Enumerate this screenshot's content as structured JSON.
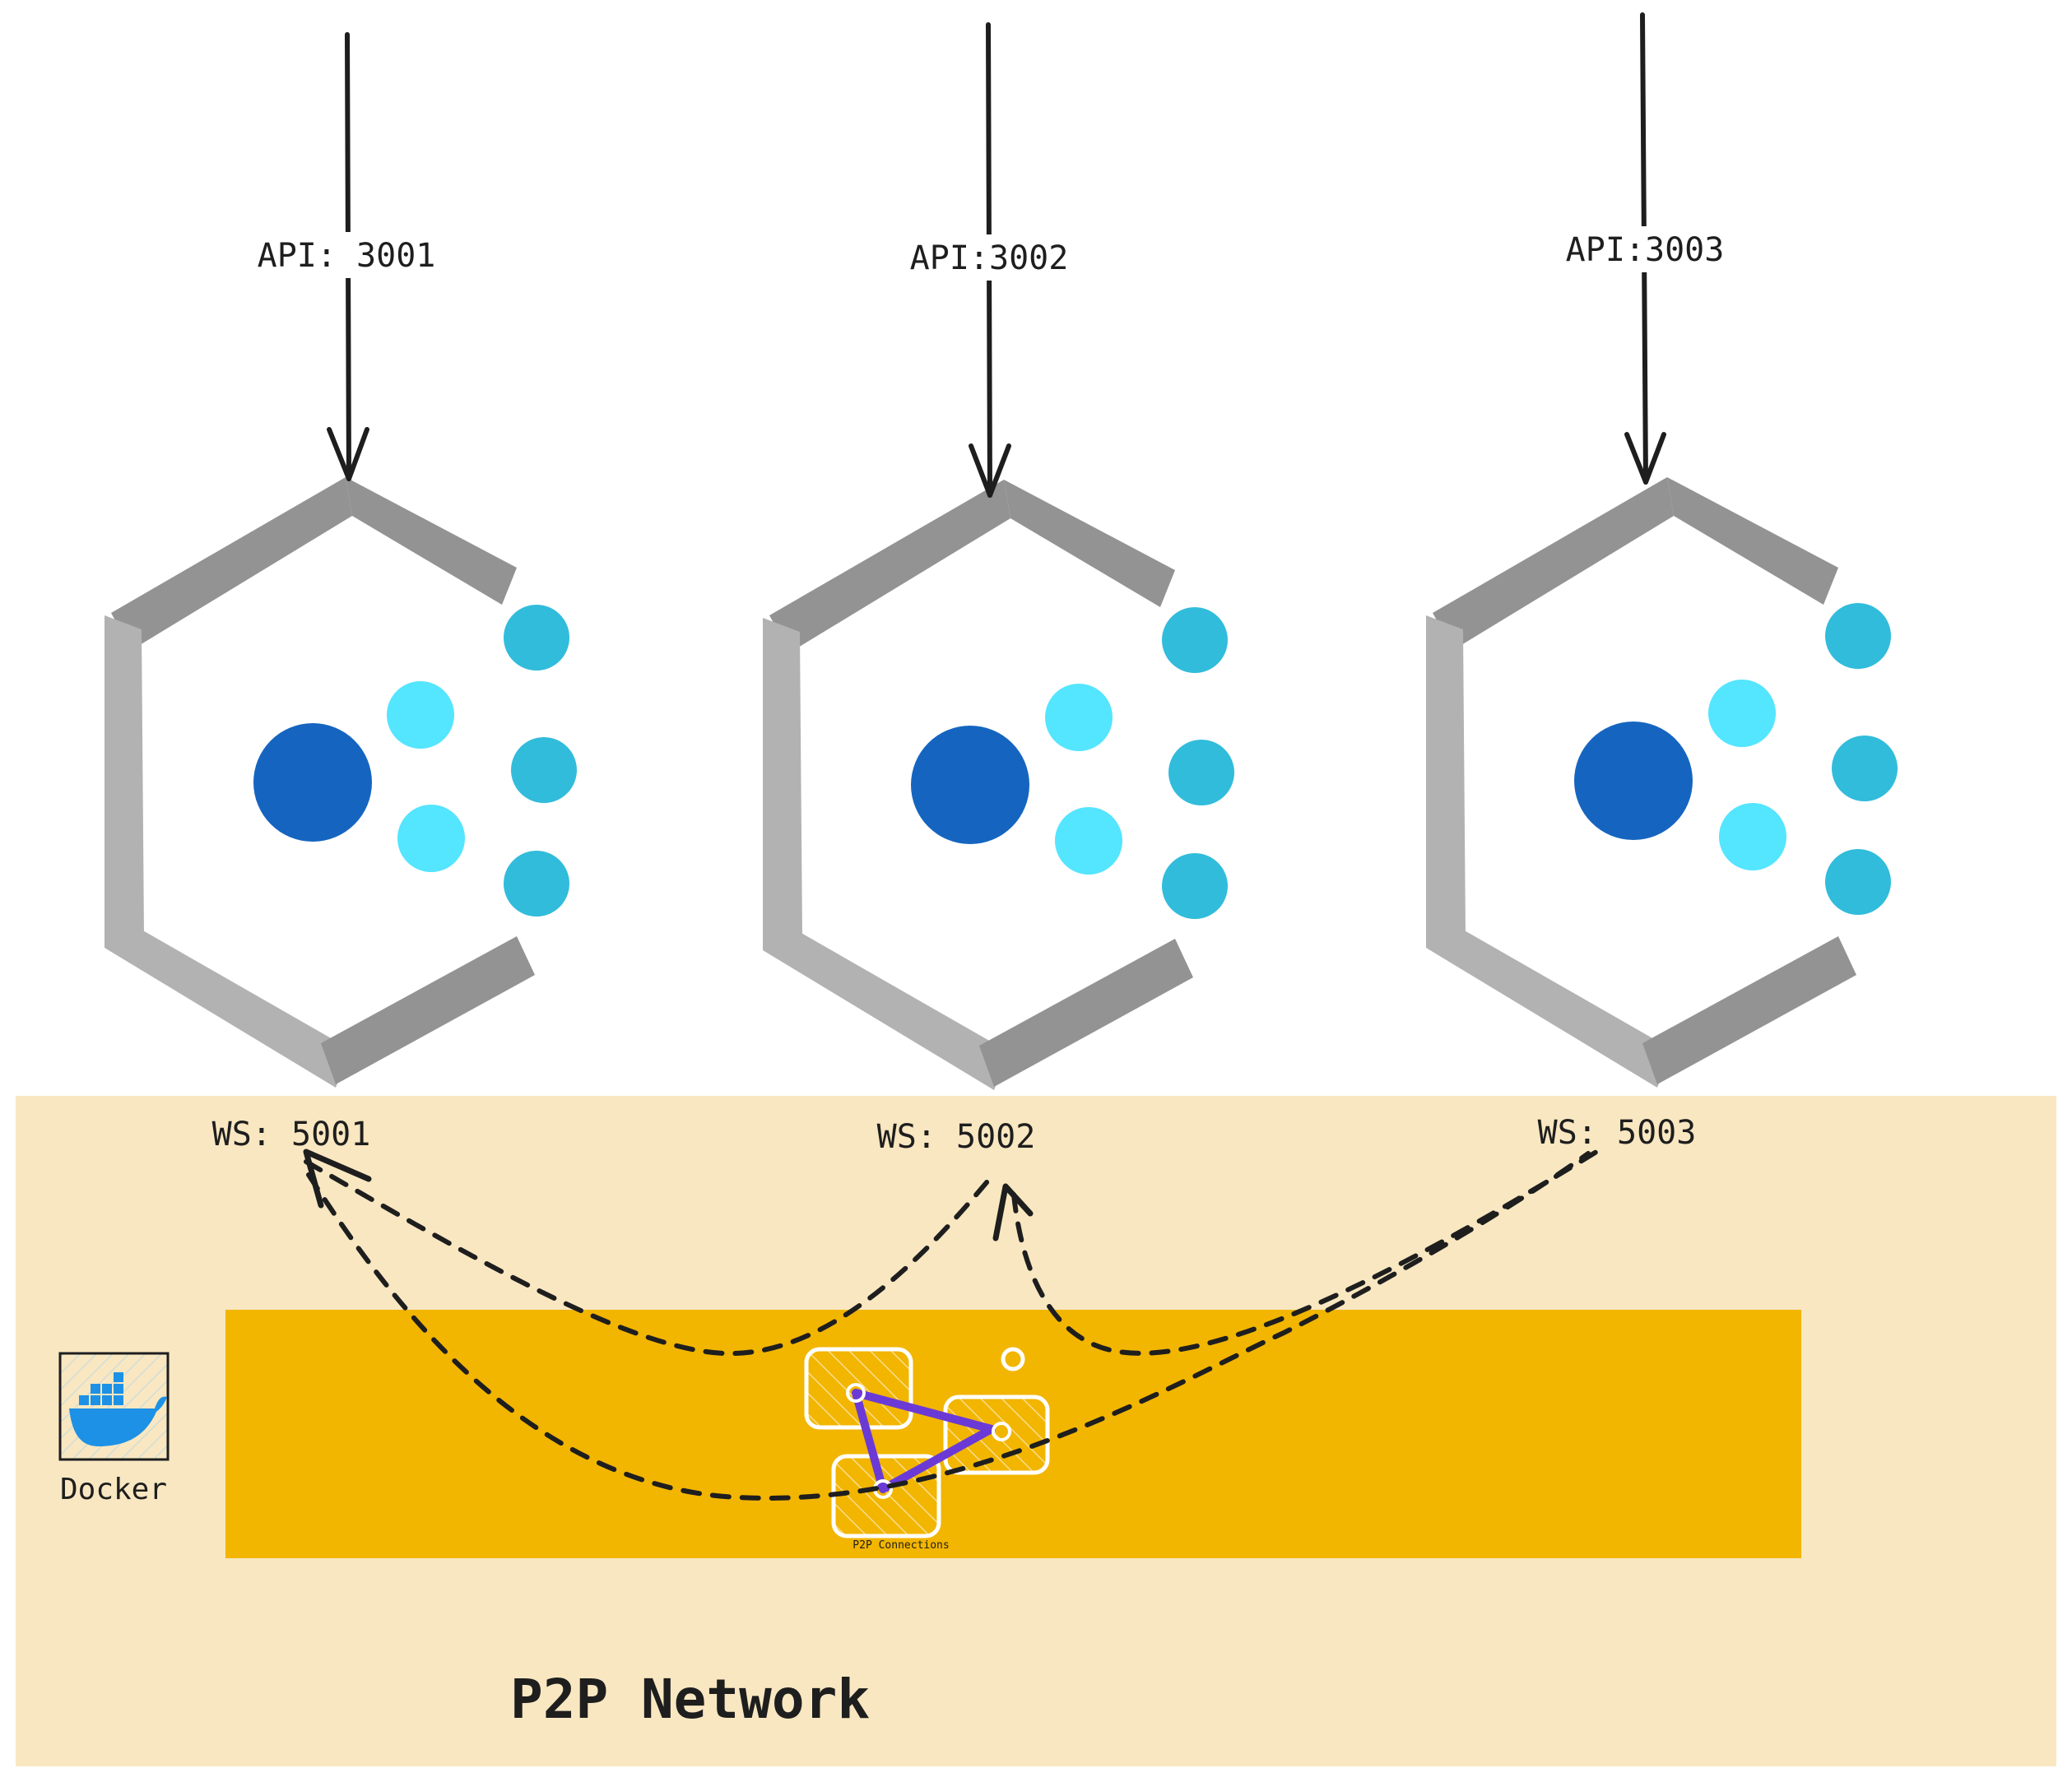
{
  "nodes": [
    {
      "api_label": "API: 3001",
      "ws_label": "WS: 5001"
    },
    {
      "api_label": "API:3002",
      "ws_label": "WS: 5002"
    },
    {
      "api_label": "API:3003",
      "ws_label": "WS: 5003"
    }
  ],
  "network": {
    "title": "P2P Network",
    "connections_label": "P2P Connections"
  },
  "docker": {
    "label": "Docker"
  },
  "colors": {
    "background": "#ffffff",
    "network_region": "#f8e7c1",
    "network_band": "#f2b500",
    "hex_dark": "#939393",
    "hex_light": "#b2b2b2",
    "core_dot": "#1565c0",
    "inner_dot": "#54e5ff",
    "outer_dot": "#31bcdb",
    "arrow": "#1e1e1e",
    "triangle": "#6b3ad6",
    "docker_blue": "#1d91e6"
  }
}
